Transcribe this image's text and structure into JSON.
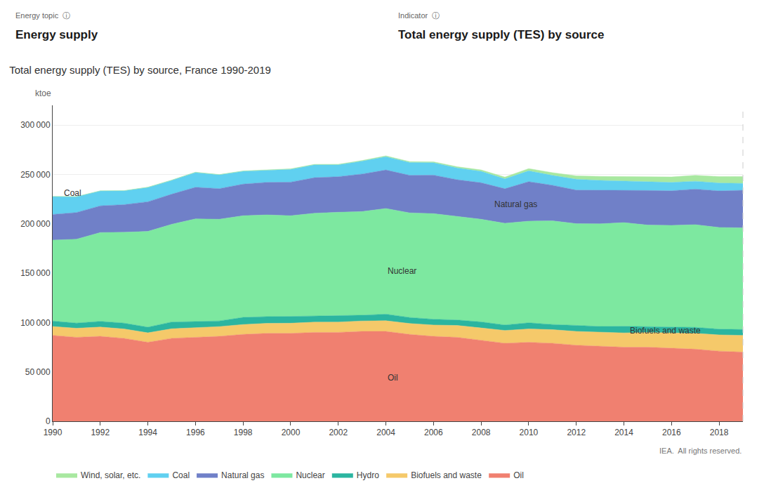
{
  "chart_data": {
    "type": "area",
    "stacked": true,
    "title": "Total energy supply (TES) by source, France 1990-2019",
    "ylabel": "ktoe",
    "x": [
      1990,
      1991,
      1992,
      1993,
      1994,
      1995,
      1996,
      1997,
      1998,
      1999,
      2000,
      2001,
      2002,
      2003,
      2004,
      2005,
      2006,
      2007,
      2008,
      2009,
      2010,
      2011,
      2012,
      2013,
      2014,
      2015,
      2016,
      2017,
      2018,
      2019
    ],
    "series": [
      {
        "name": "Oil",
        "color": "#F08070",
        "values": [
          87000,
          85000,
          86000,
          84000,
          80000,
          84000,
          85000,
          86000,
          88000,
          89000,
          89000,
          90000,
          90000,
          91000,
          91000,
          88000,
          86000,
          85000,
          82000,
          79000,
          80000,
          79000,
          77000,
          76000,
          75000,
          75000,
          74000,
          73000,
          71000,
          70000
        ]
      },
      {
        "name": "Biofuels and waste",
        "color": "#F5C96A",
        "values": [
          9000,
          9200,
          9400,
          9500,
          9600,
          9700,
          9800,
          9900,
          10000,
          10200,
          10300,
          10400,
          10500,
          10600,
          10800,
          11000,
          11500,
          12000,
          12500,
          13000,
          13500,
          13800,
          14000,
          14200,
          14500,
          15000,
          15500,
          16000,
          16500,
          17000
        ]
      },
      {
        "name": "Hydro",
        "color": "#2BB5A0",
        "values": [
          5500,
          5200,
          5800,
          5900,
          5700,
          6800,
          6200,
          5700,
          7200,
          6800,
          6900,
          6300,
          6200,
          5800,
          6700,
          6100,
          5800,
          5600,
          6100,
          5500,
          6200,
          5200,
          6100,
          5800,
          6700,
          5700,
          5900,
          6100,
          5800,
          5900
        ]
      },
      {
        "name": "Nuclear",
        "color": "#7DE8A0",
        "values": [
          82000,
          85000,
          90000,
          92000,
          97000,
          99000,
          104000,
          103000,
          103000,
          103000,
          102000,
          104000,
          105000,
          105000,
          107000,
          106000,
          107000,
          105000,
          104000,
          103000,
          103000,
          105000,
          103000,
          104000,
          105000,
          103000,
          103000,
          104000,
          103000,
          103000
        ]
      },
      {
        "name": "Natural gas",
        "color": "#7080C8",
        "values": [
          26000,
          27000,
          27000,
          28000,
          30000,
          30500,
          32000,
          31000,
          32000,
          33000,
          34000,
          36000,
          36000,
          38000,
          39000,
          38000,
          39000,
          37000,
          37000,
          35000,
          40000,
          36000,
          34000,
          34000,
          33000,
          35000,
          35000,
          36000,
          37000,
          38000
        ]
      },
      {
        "name": "Coal",
        "color": "#60D0F0",
        "values": [
          18000,
          16000,
          15000,
          14000,
          14500,
          14000,
          15000,
          14000,
          13000,
          12000,
          13000,
          13000,
          12000,
          13000,
          13500,
          13000,
          12500,
          12000,
          11500,
          10000,
          11000,
          10000,
          11000,
          10000,
          9000,
          9000,
          8500,
          8000,
          8000,
          7000
        ]
      },
      {
        "name": "Wind, solar, etc.",
        "color": "#A8E8A0",
        "values": [
          200,
          200,
          200,
          200,
          300,
          300,
          300,
          300,
          400,
          400,
          500,
          500,
          600,
          700,
          800,
          900,
          1000,
          1200,
          1500,
          1800,
          2200,
          2800,
          3500,
          4000,
          4500,
          5000,
          5500,
          6000,
          6500,
          7000
        ]
      }
    ],
    "xlim": [
      1990,
      2019
    ],
    "xticks": [
      1990,
      1992,
      1994,
      1996,
      1998,
      2000,
      2002,
      2004,
      2006,
      2008,
      2010,
      2012,
      2014,
      2016,
      2018
    ],
    "ylim": [
      0,
      320000
    ],
    "yticks": [
      0,
      {
        "value": 50000,
        "label": "50 000"
      },
      {
        "value": 100000,
        "label": "100 000"
      },
      {
        "value": 150000,
        "label": "150 000"
      },
      {
        "value": 200000,
        "label": "200 000"
      },
      {
        "value": 250000,
        "label": "250 000"
      },
      {
        "value": 300000,
        "label": "300 000"
      }
    ],
    "grid": true,
    "legend": "bottom",
    "annotations": [
      {
        "text": "Oil",
        "x": 2004,
        "y": 44000
      },
      {
        "text": "Biofuels and waste",
        "x": 2014.2,
        "y": 92000
      },
      {
        "text": "Nuclear",
        "x": 2004,
        "y": 152000
      },
      {
        "text": "Natural gas",
        "x": 2008.5,
        "y": 220000
      },
      {
        "text": "Coal",
        "x": 1990.4,
        "y": 231000
      },
      {
        "text": "Energy topic  ⓘ"
      },
      {
        "text": "Energy supply"
      },
      {
        "text": "Indicator  ⓘ"
      },
      {
        "text": "Total energy supply (TES) by source"
      },
      {
        "text": "IEA.  All rights reserved."
      }
    ]
  }
}
